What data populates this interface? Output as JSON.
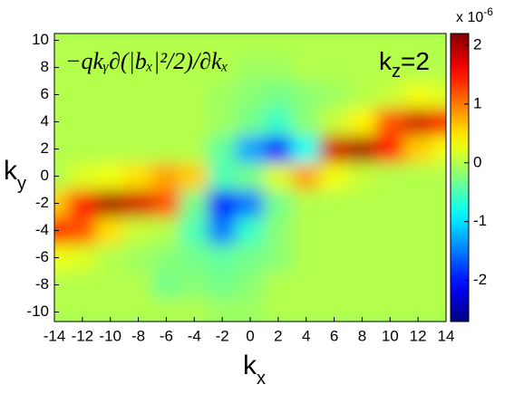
{
  "chart_data": {
    "type": "heatmap",
    "formula": "−qkᵧ∂(|bₓ|²/2)/∂kₓ",
    "panel_label": {
      "base": "k",
      "sub": "z",
      "rest": "=2"
    },
    "x_label": {
      "base": "k",
      "sub": "x"
    },
    "y_label": {
      "base": "k",
      "sub": "y"
    },
    "x": [
      -14,
      -12,
      -10,
      -8,
      -6,
      -4,
      -2,
      0,
      2,
      4,
      6,
      8,
      10,
      12,
      14
    ],
    "y": [
      -10,
      -8,
      -6,
      -4,
      -2,
      0,
      2,
      4,
      6,
      8,
      10
    ],
    "z": [
      [
        0,
        0,
        0,
        0,
        0,
        0,
        -0.1,
        -0.1,
        0,
        0,
        0,
        0,
        0,
        0,
        0
      ],
      [
        0,
        0,
        0,
        0,
        -0.3,
        -0.2,
        -0.3,
        -0.2,
        0,
        0,
        0,
        0,
        0,
        0,
        0
      ],
      [
        0.3,
        0.2,
        0,
        -0.1,
        -0.2,
        -0.3,
        -0.4,
        -0.3,
        -0.2,
        0,
        0,
        0,
        0,
        0,
        0
      ],
      [
        1.5,
        1.2,
        0.5,
        0.1,
        0,
        -0.5,
        -1.5,
        -0.6,
        -0.2,
        0,
        0,
        0,
        0,
        0,
        0
      ],
      [
        0.6,
        1.5,
        2.0,
        1.8,
        1.2,
        -0.3,
        -2.0,
        -1.5,
        -0.3,
        0,
        0,
        0,
        0,
        0,
        0
      ],
      [
        0,
        0.2,
        0.3,
        0.5,
        0.8,
        0.6,
        -0.5,
        -0.3,
        0.2,
        0.8,
        0.3,
        0.1,
        0,
        0,
        0
      ],
      [
        0,
        0,
        0,
        0,
        0,
        0,
        -0.4,
        -1.3,
        -2.0,
        -0.8,
        1.8,
        2.0,
        1.5,
        0.6,
        0.3
      ],
      [
        0,
        0,
        0,
        0,
        0,
        0,
        -0.1,
        -0.3,
        -0.6,
        -0.2,
        0.1,
        0.4,
        1.2,
        1.8,
        1.5
      ],
      [
        0,
        0,
        0,
        0,
        0,
        0,
        -0.1,
        -0.2,
        -0.3,
        -0.2,
        -0.1,
        0,
        0.1,
        0.3,
        0.2
      ],
      [
        0,
        0,
        0,
        0,
        0,
        0,
        0,
        -0.1,
        -0.1,
        0,
        0,
        0,
        0,
        0,
        0
      ],
      [
        0,
        0,
        0,
        0,
        0,
        0,
        0,
        0,
        0,
        0,
        0,
        0,
        0,
        0,
        0
      ]
    ],
    "xlim": [
      -14,
      14
    ],
    "ylim": [
      -10.7,
      10.5
    ],
    "xticks": [
      -14,
      -12,
      -10,
      -8,
      -6,
      -4,
      -2,
      0,
      2,
      4,
      6,
      8,
      10,
      12,
      14
    ],
    "yticks": [
      -10,
      -8,
      -6,
      -4,
      -2,
      0,
      2,
      4,
      6,
      8,
      10
    ],
    "colormap": "jet",
    "zlim": [
      -2.7,
      2.2
    ],
    "zticks": [
      -2,
      -1,
      0,
      1,
      2
    ],
    "zscale": {
      "base": "x 10",
      "exponent": "-6"
    }
  }
}
